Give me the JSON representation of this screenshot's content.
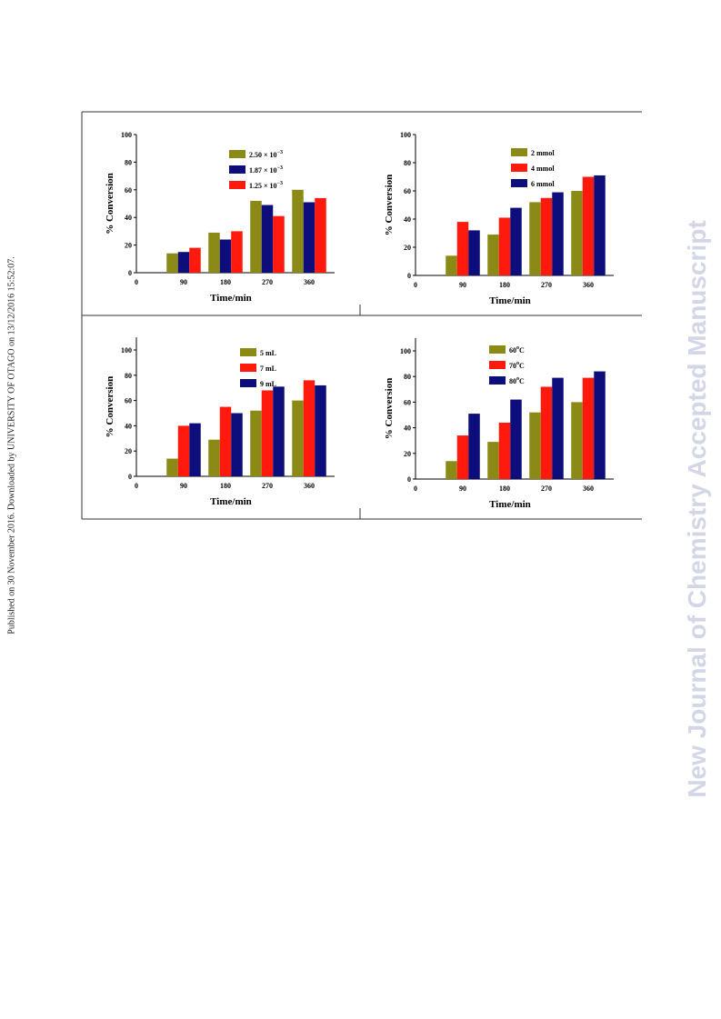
{
  "sidebar": {
    "published_note": "Published on 30 November 2016. Downloaded by UNIVERSITY OF OTAGO on 13/12/2016 15:52:07.",
    "journal_watermark": "New Journal of Chemistry Accepted Manuscript"
  },
  "colors": {
    "olive": "#8c8a16",
    "red": "#ff1a0d",
    "navy": "#0d0d7c"
  },
  "chart_data": [
    {
      "type": "bar",
      "categories": [
        "0",
        "90",
        "180",
        "270",
        "360"
      ],
      "xlabel": "Time/min",
      "ylabel": "% Conversion",
      "ylim": [
        0,
        100
      ],
      "yticks": [
        "0",
        "20",
        "40",
        "60",
        "80",
        "100"
      ],
      "legend_position": "top-center",
      "series": [
        {
          "name": "2.50 × 10",
          "sup": "−3",
          "color": "#8c8a16",
          "values": [
            0,
            14,
            29,
            52,
            60
          ]
        },
        {
          "name": "1.87 × 10",
          "sup": "−3",
          "color": "#0d0d7c",
          "values": [
            0,
            15,
            24,
            49,
            51
          ]
        },
        {
          "name": "1.25 × 10",
          "sup": "−3",
          "color": "#ff1a0d",
          "values": [
            0,
            18,
            30,
            41,
            54
          ]
        }
      ]
    },
    {
      "type": "bar",
      "categories": [
        "0",
        "90",
        "180",
        "270",
        "360"
      ],
      "xlabel": "Time/min",
      "ylabel": "% Conversion",
      "ylim": [
        0,
        100
      ],
      "yticks": [
        "0",
        "20",
        "40",
        "60",
        "80",
        "100"
      ],
      "legend_position": "top-center",
      "series": [
        {
          "name": "2 mmol",
          "color": "#8c8a16",
          "values": [
            0,
            14,
            29,
            52,
            60
          ]
        },
        {
          "name": "4 mmol",
          "color": "#ff1a0d",
          "values": [
            0,
            38,
            41,
            55,
            70
          ]
        },
        {
          "name": "6 mmol",
          "color": "#0d0d7c",
          "values": [
            0,
            32,
            48,
            59,
            71
          ]
        }
      ]
    },
    {
      "type": "bar",
      "categories": [
        "0",
        "90",
        "180",
        "270",
        "360"
      ],
      "xlabel": "Time/min",
      "ylabel": "% Conversion",
      "ylim": [
        0,
        110
      ],
      "yticks": [
        "0",
        "20",
        "40",
        "60",
        "80",
        "100"
      ],
      "legend_position": "top-center",
      "series": [
        {
          "name": "5 mL",
          "color": "#8c8a16",
          "values": [
            0,
            14,
            29,
            52,
            60
          ]
        },
        {
          "name": "7 mL",
          "color": "#ff1a0d",
          "values": [
            0,
            40,
            55,
            68,
            76
          ]
        },
        {
          "name": "9 mL",
          "color": "#0d0d7c",
          "values": [
            0,
            42,
            50,
            71,
            72
          ]
        }
      ]
    },
    {
      "type": "bar",
      "categories": [
        "0",
        "90",
        "180",
        "270",
        "360"
      ],
      "xlabel": "Time/min",
      "ylabel": "% Conversion",
      "ylim": [
        0,
        110
      ],
      "yticks": [
        "0",
        "20",
        "40",
        "60",
        "80",
        "100"
      ],
      "legend_position": "top-center",
      "series": [
        {
          "name": "60",
          "sup": "o",
          "suffix": "C",
          "color": "#8c8a16",
          "values": [
            0,
            14,
            29,
            52,
            60
          ]
        },
        {
          "name": "70",
          "sup": "o",
          "suffix": "C",
          "color": "#ff1a0d",
          "values": [
            0,
            34,
            44,
            72,
            79
          ]
        },
        {
          "name": "80",
          "sup": "o",
          "suffix": "C",
          "color": "#0d0d7c",
          "values": [
            0,
            51,
            62,
            79,
            84
          ]
        }
      ]
    }
  ]
}
